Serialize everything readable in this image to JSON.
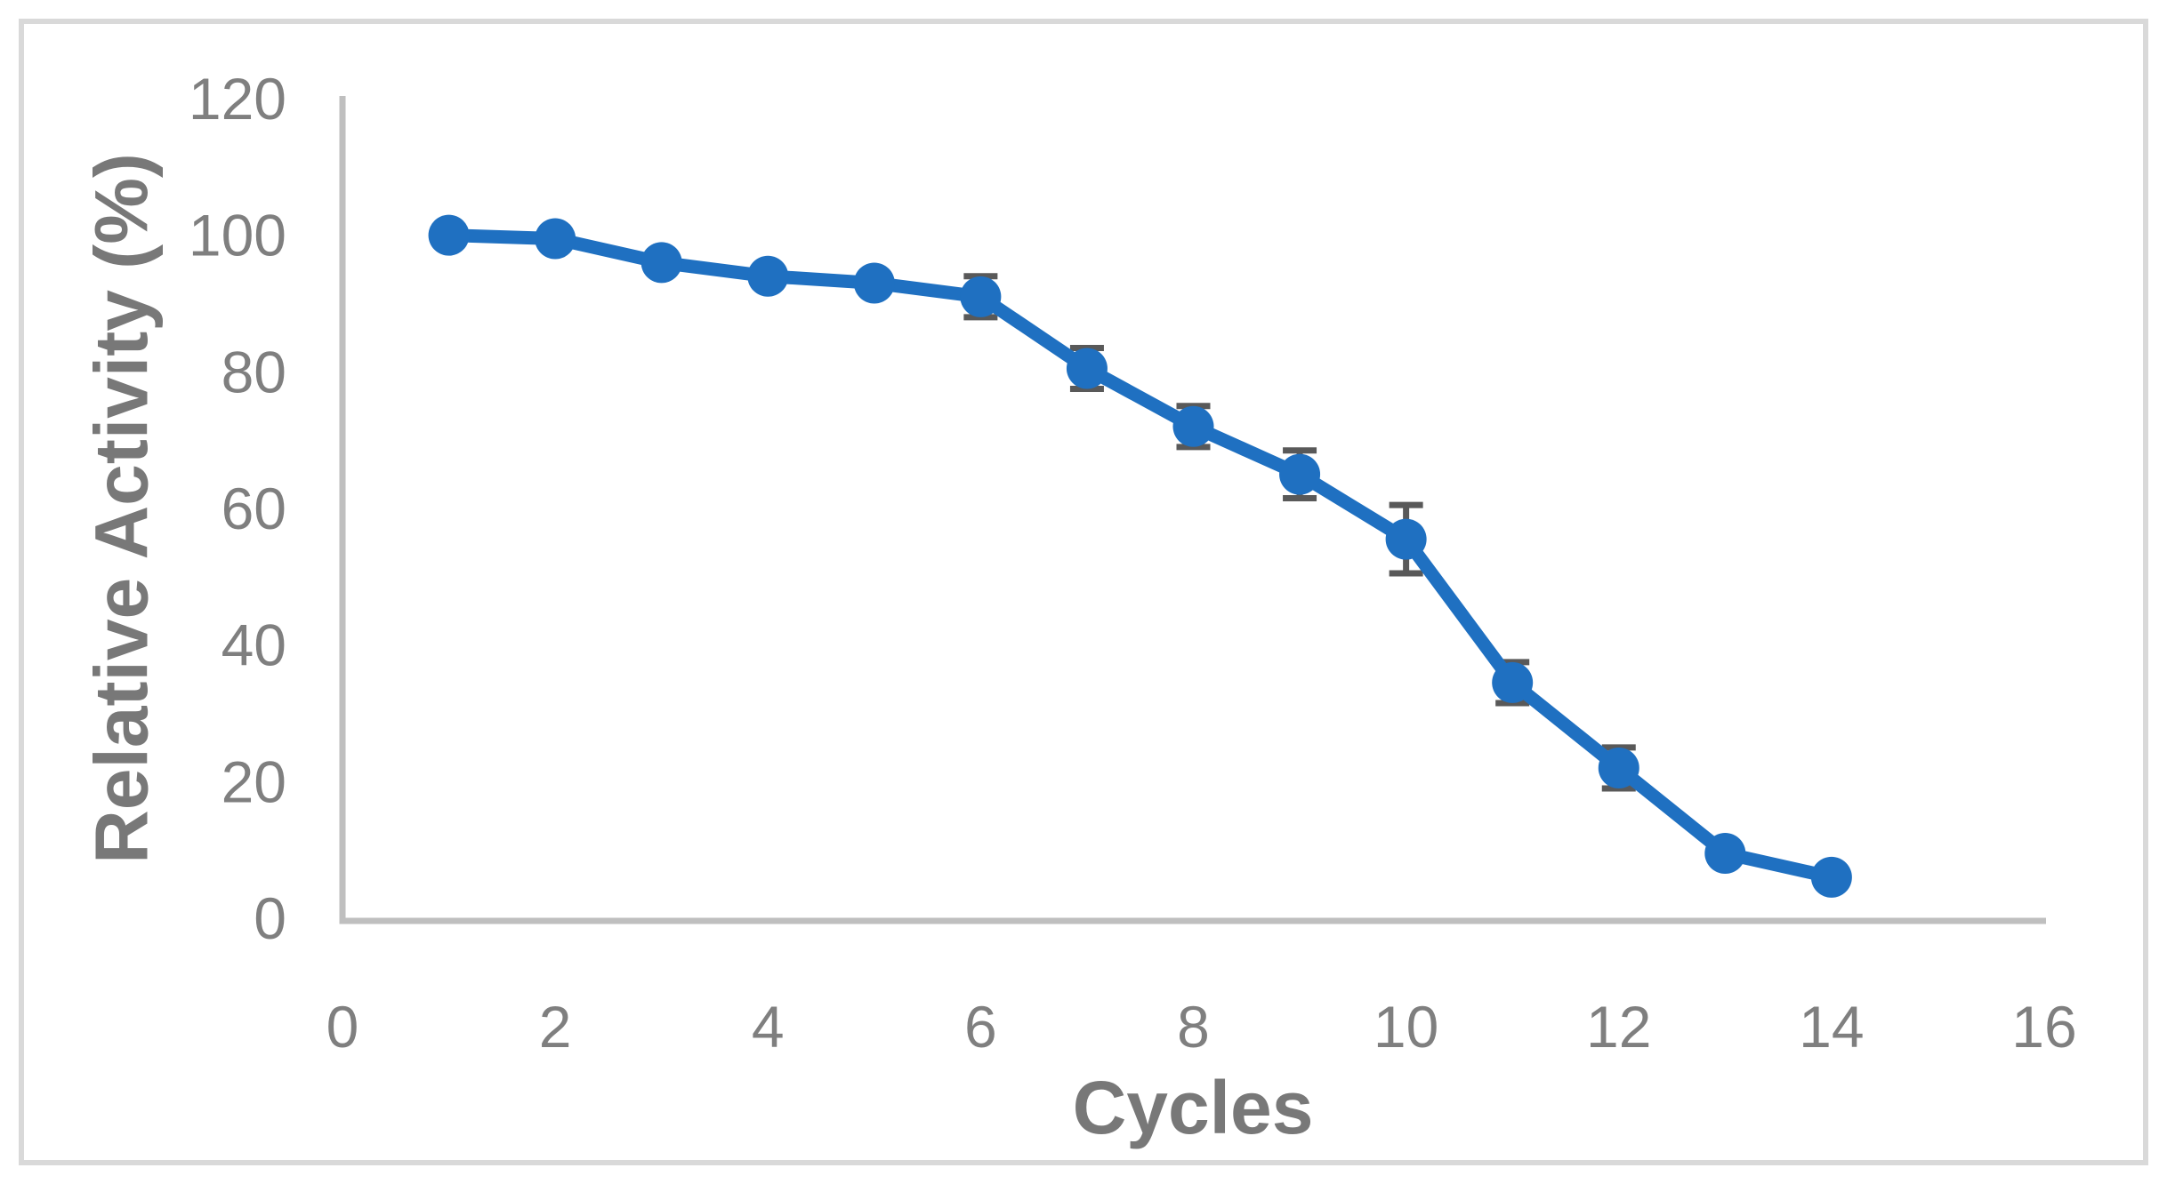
{
  "figure": {
    "background": "#FFFFFF",
    "border_color": "#D9D9D9"
  },
  "chart_data": {
    "type": "line",
    "title": "",
    "xlabel": "Cycles",
    "ylabel": "Relative Activity (%)",
    "x": [
      1,
      2,
      3,
      4,
      5,
      6,
      7,
      8,
      9,
      10,
      11,
      12,
      13,
      14
    ],
    "series": [
      {
        "name": "Relative Activity",
        "values": [
          100,
          99.5,
          96,
          94,
          93,
          91,
          80.5,
          72,
          65,
          55.5,
          34.5,
          22,
          9.5,
          6
        ],
        "error_bars": [
          0,
          0,
          0,
          0,
          0,
          3,
          3,
          3,
          3.5,
          5,
          3,
          3,
          0,
          0
        ],
        "color": "#1F70C1",
        "marker": "circle"
      }
    ],
    "xlim": [
      0,
      16
    ],
    "ylim": [
      0,
      120
    ],
    "x_ticks": [
      0,
      2,
      4,
      6,
      8,
      10,
      12,
      14,
      16
    ],
    "y_ticks": [
      0,
      20,
      40,
      60,
      80,
      100,
      120
    ],
    "grid": false,
    "legend": false,
    "axis_line_color": "#BFBFBF",
    "tick_label_color": "#7F7F7F",
    "axis_title_color": "#787878",
    "error_bar_color": "#595959"
  }
}
